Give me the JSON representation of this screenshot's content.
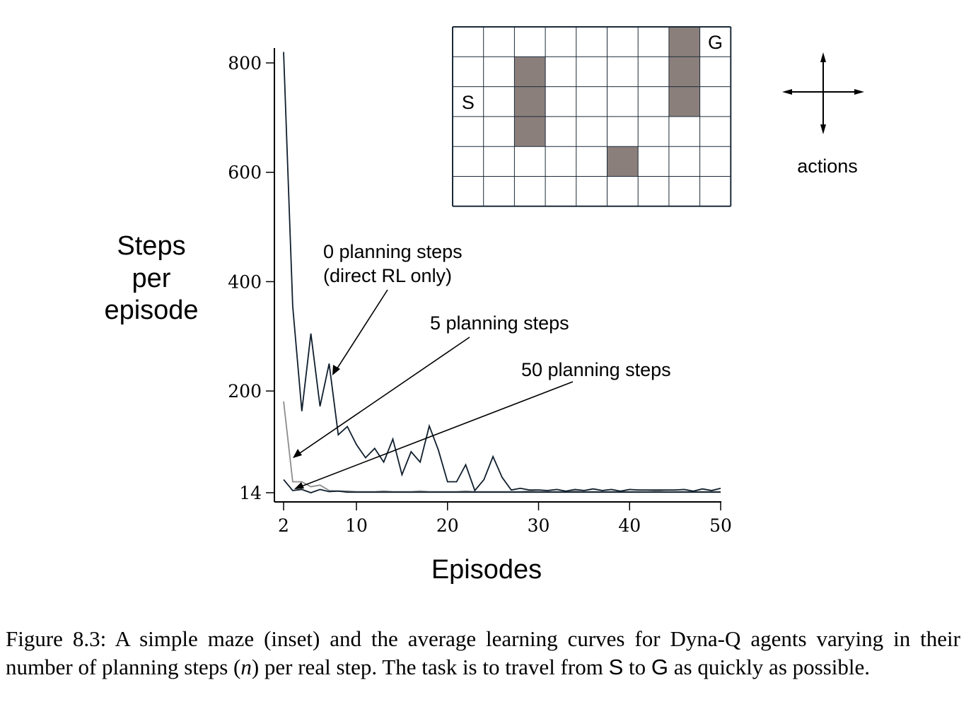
{
  "chart_data": {
    "type": "line",
    "xlabel": "Episodes",
    "ylabel_lines": [
      "Steps",
      "per",
      "episode"
    ],
    "xlim": [
      2,
      50
    ],
    "ylim": [
      14,
      800
    ],
    "xticks": [
      2,
      10,
      20,
      30,
      40,
      50
    ],
    "yticks": [
      14,
      200,
      400,
      600,
      800
    ],
    "x": [
      2,
      3,
      4,
      5,
      6,
      7,
      8,
      9,
      10,
      11,
      12,
      13,
      14,
      15,
      16,
      17,
      18,
      19,
      20,
      21,
      22,
      23,
      24,
      25,
      26,
      27,
      28,
      29,
      30,
      31,
      32,
      33,
      34,
      35,
      36,
      37,
      38,
      39,
      40,
      41,
      42,
      43,
      44,
      45,
      46,
      47,
      48,
      49,
      50
    ],
    "series": [
      {
        "label": "0 planning steps (direct RL only)",
        "label_lines": [
          "0 planning steps",
          "(direct RL only)"
        ],
        "color": "#0f1e2d",
        "values": [
          820,
          355,
          163,
          305,
          172,
          250,
          120,
          135,
          102,
          78,
          95,
          70,
          112,
          47,
          89,
          70,
          136,
          92,
          34,
          34,
          65,
          18,
          38,
          80,
          42,
          19,
          22,
          19,
          19,
          18,
          20,
          17,
          20,
          18,
          21,
          18,
          20,
          17,
          20,
          19,
          19,
          19,
          19,
          19,
          20,
          17,
          21,
          18,
          22
        ]
      },
      {
        "label": "5 planning steps",
        "color": "#8c8c8c",
        "values": [
          181,
          34,
          34,
          25,
          28,
          18,
          17,
          17,
          16,
          16,
          16,
          17,
          16,
          16,
          16,
          17,
          16,
          16,
          16,
          16,
          17,
          16,
          16,
          16,
          16,
          16,
          16,
          17,
          16,
          16,
          16,
          16,
          17,
          16,
          16,
          16,
          16,
          16,
          16,
          16,
          16,
          17,
          16,
          16,
          16,
          16,
          16,
          16,
          16
        ]
      },
      {
        "label": "50 planning steps",
        "color": "#0f1e2d",
        "values": [
          38,
          18,
          20,
          14,
          20,
          16,
          17,
          15,
          15,
          15,
          15,
          15,
          15,
          15,
          15,
          15,
          15,
          15,
          15,
          15,
          15,
          15,
          15,
          15,
          15,
          15,
          15,
          15,
          15,
          15,
          15,
          15,
          15,
          15,
          15,
          15,
          15,
          15,
          15,
          15,
          15,
          15,
          15,
          15,
          15,
          15,
          15,
          15,
          15
        ]
      }
    ],
    "annotations": [
      "0 planning steps",
      "(direct RL only)",
      "5 planning steps",
      "50 planning steps"
    ]
  },
  "maze": {
    "rows": 6,
    "cols": 9,
    "start_label": "S",
    "goal_label": "G",
    "start_cell": [
      2,
      0
    ],
    "goal_cell": [
      0,
      8
    ],
    "walls": [
      [
        1,
        2
      ],
      [
        2,
        2
      ],
      [
        3,
        2
      ],
      [
        4,
        5
      ],
      [
        0,
        7
      ],
      [
        1,
        7
      ],
      [
        2,
        7
      ]
    ],
    "wall_color": "#8b7f7c"
  },
  "actions_label": "actions",
  "caption": {
    "prefix": "Figure 8.3:",
    "part1": "A simple maze (inset) and the average learning curves for Dyna-Q agents varying in their number of planning steps (",
    "var": "n",
    "part2": ") per real step.  The task is to travel from ",
    "s": "S",
    "part3": " to ",
    "g": "G",
    "part4": " as quickly as possible."
  }
}
